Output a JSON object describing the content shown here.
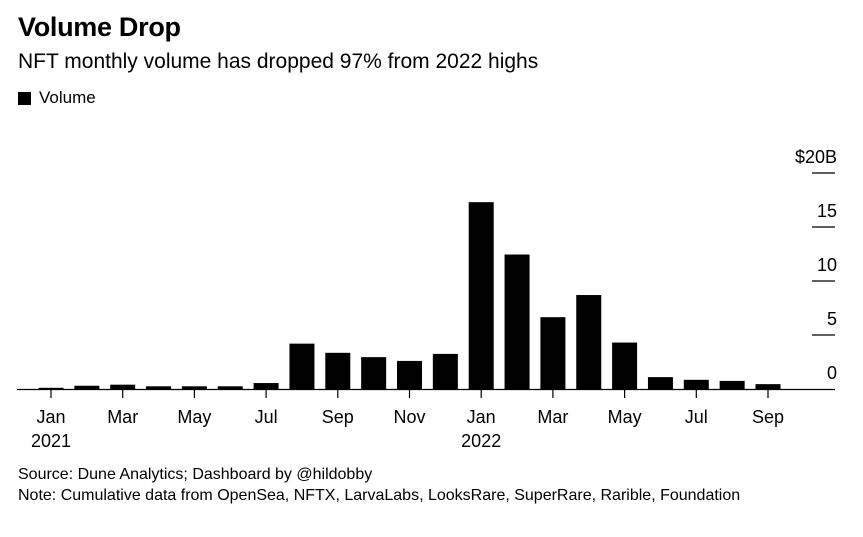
{
  "title": "Volume Drop",
  "subtitle": "NFT monthly volume has dropped 97% from 2022 highs",
  "source": "Source: Dune Analytics; Dashboard by @hildobby",
  "note": "Note: Cumulative data from OpenSea, NFTX, LarvaLabs, LooksRare, SuperRare, Rarible, Foundation",
  "colors": {
    "bar": "#000000",
    "axis": "#000000"
  },
  "chart_data": {
    "type": "bar",
    "title": "Volume Drop",
    "subtitle": "NFT monthly volume has dropped 97% from 2022 highs",
    "xlabel": "",
    "ylabel": "",
    "ylim": [
      0,
      20
    ],
    "y_ticks": [
      {
        "value": 0,
        "label": "0"
      },
      {
        "value": 5,
        "label": "5"
      },
      {
        "value": 10,
        "label": "10"
      },
      {
        "value": 15,
        "label": "15"
      },
      {
        "value": 20,
        "label": "$20B"
      }
    ],
    "y_axis_side": "right",
    "grid": false,
    "legend": "top-left",
    "x_tick_labels": [
      {
        "index": 0,
        "label": "Jan",
        "sublabel": "2021"
      },
      {
        "index": 2,
        "label": "Mar"
      },
      {
        "index": 4,
        "label": "May"
      },
      {
        "index": 6,
        "label": "Jul"
      },
      {
        "index": 8,
        "label": "Sep"
      },
      {
        "index": 10,
        "label": "Nov"
      },
      {
        "index": 12,
        "label": "Jan",
        "sublabel": "2022"
      },
      {
        "index": 14,
        "label": "Mar"
      },
      {
        "index": 16,
        "label": "May"
      },
      {
        "index": 18,
        "label": "Jul"
      },
      {
        "index": 20,
        "label": "Sep"
      }
    ],
    "series": [
      {
        "name": "Volume",
        "values": [
          0.1,
          0.3,
          0.4,
          0.25,
          0.25,
          0.25,
          0.55,
          4.2,
          3.35,
          2.95,
          2.6,
          3.25,
          17.3,
          12.45,
          6.65,
          8.7,
          4.3,
          1.1,
          0.85,
          0.75,
          0.45
        ]
      }
    ]
  }
}
